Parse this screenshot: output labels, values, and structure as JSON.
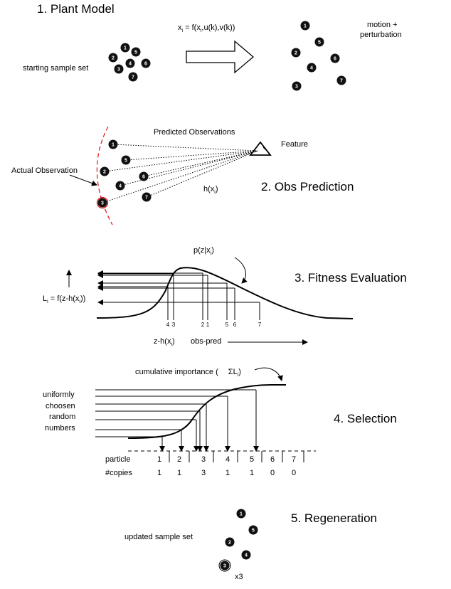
{
  "section1": {
    "title": "1. Plant Model",
    "equation": "x",
    "equation_sub": "i",
    "equation_rest": " = f(x",
    "equation_sub2": "i",
    "equation_tail": ",u(k),v(k))",
    "start_label": "starting sample set",
    "motion_label_line1": "motion +",
    "motion_label_line2": "perturbation",
    "start_particles": [
      "1",
      "2",
      "3",
      "4",
      "5",
      "6",
      "7"
    ],
    "moved_particles": [
      "1",
      "2",
      "3",
      "4",
      "5",
      "6",
      "7"
    ]
  },
  "section2": {
    "title": "2. Obs Prediction",
    "predicted_label": "Predicted Observations",
    "feature_label": "Feature",
    "actual_label": "Actual Observation",
    "h_label": "h(x",
    "h_sub": "i",
    "h_tail": ")",
    "particles": [
      "1",
      "5",
      "2",
      "6",
      "4",
      "7",
      "3"
    ]
  },
  "section3": {
    "title": "3. Fitness Evaluation",
    "likelihood_label": "L",
    "likelihood_sub": "i",
    "likelihood_rest": " = f(z-h(x",
    "likelihood_sub2": "i",
    "likelihood_tail": "))",
    "pdf_label": "p(z|x",
    "pdf_sub": "i",
    "pdf_tail": ")",
    "axis_label": "z-h(x",
    "axis_sub": "i",
    "axis_tail": ")",
    "obs_pred_label": "obs-pred",
    "tick_labels": [
      "4",
      "3",
      "2",
      "1",
      "5",
      "6",
      "7"
    ]
  },
  "section4": {
    "title": "4. Selection",
    "cumulative_label": "cumulative importance (",
    "sigma_label": "ΣL",
    "sigma_sub": "i",
    "sigma_tail": ")",
    "random_label_lines": [
      "uniformly",
      "choosen",
      "random",
      "numbers"
    ],
    "particle_row_label": "particle",
    "copies_row_label": "#copies",
    "particles": [
      "1",
      "2",
      "3",
      "4",
      "5",
      "6",
      "7"
    ],
    "copies": [
      "1",
      "1",
      "3",
      "1",
      "1",
      "0",
      "0"
    ]
  },
  "section5": {
    "title": "5. Regeneration",
    "updated_label": "updated sample set",
    "multiplier_label": "x3",
    "particles": [
      "1",
      "5",
      "2",
      "4",
      "3"
    ]
  }
}
